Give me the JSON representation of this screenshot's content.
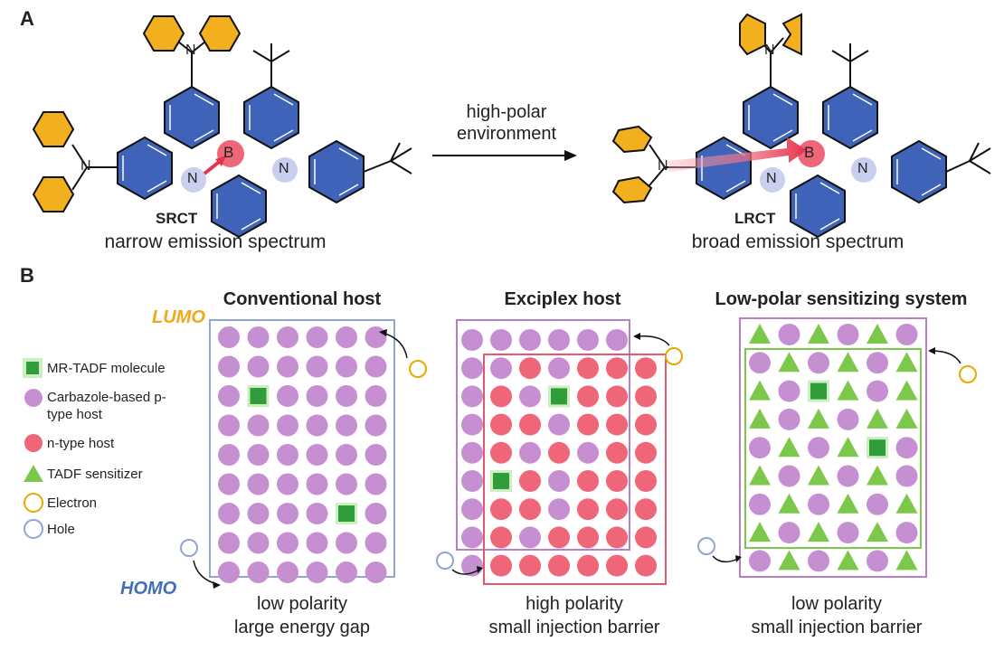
{
  "panelA": {
    "letter": "A",
    "left_molecule": {
      "tag": "SRCT",
      "caption": "narrow emission spectrum"
    },
    "right_molecule": {
      "tag": "LRCT",
      "caption": "broad emission spectrum"
    },
    "arrow_label_line1": "high-polar",
    "arrow_label_line2": "environment",
    "atoms": {
      "boron": "B",
      "nitrogen": "N"
    }
  },
  "panelB": {
    "letter": "B",
    "legend": [
      {
        "label": "MR-TADF molecule",
        "symbol": "green-square"
      },
      {
        "label_line1": "Carbazole-based p-",
        "label_line2": "type host",
        "symbol": "purple-circle"
      },
      {
        "label": "n-type host",
        "symbol": "red-circle"
      },
      {
        "label": "TADF sensitizer",
        "symbol": "green-triangle"
      },
      {
        "label": "Electron",
        "symbol": "orange-ring"
      },
      {
        "label": "Hole",
        "symbol": "blue-ring"
      }
    ],
    "lumo": "LUMO",
    "homo": "HOMO",
    "systems": [
      {
        "title": "Conventional host",
        "caption_line1": "low polarity",
        "caption_line2": "large energy gap"
      },
      {
        "title": "Exciplex host",
        "caption_line1": "high polarity",
        "caption_line2": "small injection barrier"
      },
      {
        "title": "Low-polar sensitizing system",
        "caption_line1": "low polarity",
        "caption_line2": "small injection barrier"
      }
    ]
  },
  "colors": {
    "purple": "#c68fd1",
    "red": "#ee6677",
    "green": "#55bb33",
    "blue_ring": "#8fa5d6",
    "orange_ring": "#e8a800",
    "ring_blue": "#3e63b8",
    "ring_yellow": "#f2b01e",
    "lumo_text": "#f0a818",
    "homo_text": "#3e6fb8"
  }
}
